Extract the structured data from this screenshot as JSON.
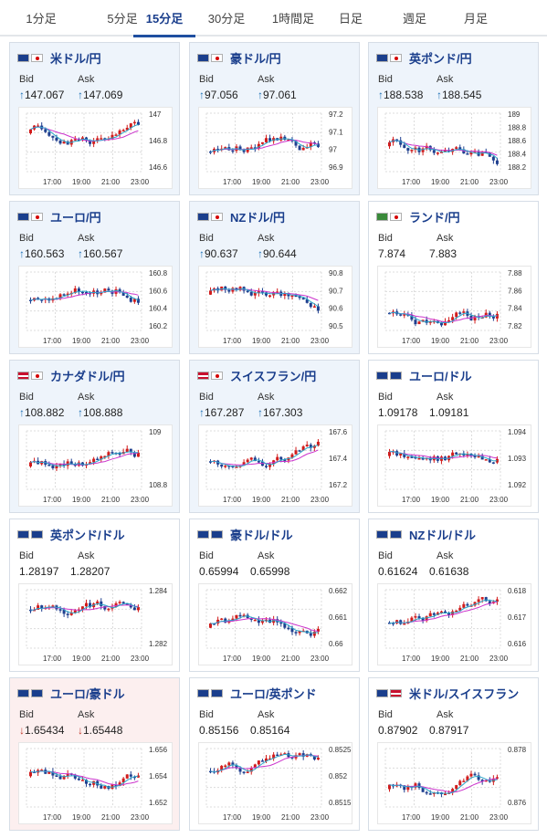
{
  "tabs": [
    {
      "label": "1分足",
      "active": false
    },
    {
      "label": "5分足",
      "active": false
    },
    {
      "label": "15分足",
      "active": true
    },
    {
      "label": "30分足",
      "active": false
    },
    {
      "label": "1時間足",
      "active": false
    },
    {
      "label": "日足",
      "active": false
    },
    {
      "label": "週足",
      "active": false
    },
    {
      "label": "月足",
      "active": false
    }
  ],
  "labels": {
    "bid": "Bid",
    "ask": "Ask"
  },
  "colors": {
    "up": "#d11c1c",
    "down": "#1f3f8f",
    "ma1": "#cc33cc",
    "ma2": "#2aa6c9",
    "accent": "#1a3e8c"
  },
  "cards": [
    {
      "name": "米ドル/円",
      "flags": [
        "us",
        "jp"
      ],
      "trend": "up",
      "bid": "147.067",
      "ask": "147.069",
      "bid_arrow": "↑",
      "ask_arrow": "↑",
      "yticks": [
        "147",
        "146.8",
        "146.6"
      ],
      "xticks": [
        "17:00",
        "19:00",
        "21:00",
        "23:00"
      ]
    },
    {
      "name": "豪ドル/円",
      "flags": [
        "au",
        "jp"
      ],
      "trend": "up",
      "bid": "97.056",
      "ask": "97.061",
      "bid_arrow": "↑",
      "ask_arrow": "↑",
      "yticks": [
        "97.2",
        "97.1",
        "97",
        "96.9"
      ],
      "xticks": [
        "17:00",
        "19:00",
        "21:00",
        "23:00"
      ]
    },
    {
      "name": "英ポンド/円",
      "flags": [
        "gb",
        "jp"
      ],
      "trend": "up",
      "bid": "188.538",
      "ask": "188.545",
      "bid_arrow": "↑",
      "ask_arrow": "↑",
      "yticks": [
        "189",
        "188.8",
        "188.6",
        "188.4",
        "188.2"
      ],
      "xticks": [
        "17:00",
        "19:00",
        "21:00",
        "23:00"
      ]
    },
    {
      "name": "ユーロ/円",
      "flags": [
        "eu",
        "jp"
      ],
      "trend": "up",
      "bid": "160.563",
      "ask": "160.567",
      "bid_arrow": "↑",
      "ask_arrow": "↑",
      "yticks": [
        "160.8",
        "160.6",
        "160.4",
        "160.2"
      ],
      "xticks": [
        "17:00",
        "19:00",
        "21:00",
        "23:00"
      ]
    },
    {
      "name": "NZドル/円",
      "flags": [
        "nz",
        "jp"
      ],
      "trend": "up",
      "bid": "90.637",
      "ask": "90.644",
      "bid_arrow": "↑",
      "ask_arrow": "↑",
      "yticks": [
        "90.8",
        "90.7",
        "90.6",
        "90.5"
      ],
      "xticks": [
        "17:00",
        "19:00",
        "21:00",
        "23:00"
      ]
    },
    {
      "name": "ランド/円",
      "flags": [
        "za",
        "jp"
      ],
      "trend": "none",
      "bid": "7.874",
      "ask": "7.883",
      "bid_arrow": "",
      "ask_arrow": "",
      "yticks": [
        "7.88",
        "7.86",
        "7.84",
        "7.82"
      ],
      "xticks": [
        "17:00",
        "19:00",
        "21:00",
        "23:00"
      ]
    },
    {
      "name": "カナダドル/円",
      "flags": [
        "ca",
        "jp"
      ],
      "trend": "up",
      "bid": "108.882",
      "ask": "108.888",
      "bid_arrow": "↑",
      "ask_arrow": "↑",
      "yticks": [
        "109",
        "108.8"
      ],
      "xticks": [
        "17:00",
        "19:00",
        "21:00",
        "23:00"
      ]
    },
    {
      "name": "スイスフラン/円",
      "flags": [
        "ch",
        "jp"
      ],
      "trend": "up",
      "bid": "167.287",
      "ask": "167.303",
      "bid_arrow": "↑",
      "ask_arrow": "↑",
      "yticks": [
        "167.6",
        "167.4",
        "167.2"
      ],
      "xticks": [
        "17:00",
        "19:00",
        "21:00",
        "23:00"
      ]
    },
    {
      "name": "ユーロ/ドル",
      "flags": [
        "eu",
        "us"
      ],
      "trend": "none",
      "bid": "1.09178",
      "ask": "1.09181",
      "bid_arrow": "",
      "ask_arrow": "",
      "yticks": [
        "1.094",
        "1.093",
        "1.092"
      ],
      "xticks": [
        "17:00",
        "19:00",
        "21:00",
        "23:00"
      ]
    },
    {
      "name": "英ポンド/ドル",
      "flags": [
        "gb",
        "us"
      ],
      "trend": "none",
      "bid": "1.28197",
      "ask": "1.28207",
      "bid_arrow": "",
      "ask_arrow": "",
      "yticks": [
        "1.284",
        "1.282"
      ],
      "xticks": [
        "17:00",
        "19:00",
        "21:00",
        "23:00"
      ]
    },
    {
      "name": "豪ドル/ドル",
      "flags": [
        "au",
        "us"
      ],
      "trend": "none",
      "bid": "0.65994",
      "ask": "0.65998",
      "bid_arrow": "",
      "ask_arrow": "",
      "yticks": [
        "0.662",
        "0.661",
        "0.66"
      ],
      "xticks": [
        "17:00",
        "19:00",
        "21:00",
        "23:00"
      ]
    },
    {
      "name": "NZドル/ドル",
      "flags": [
        "nz",
        "us"
      ],
      "trend": "none",
      "bid": "0.61624",
      "ask": "0.61638",
      "bid_arrow": "",
      "ask_arrow": "",
      "yticks": [
        "0.618",
        "0.617",
        "0.616"
      ],
      "xticks": [
        "17:00",
        "19:00",
        "21:00",
        "23:00"
      ]
    },
    {
      "name": "ユーロ/豪ドル",
      "flags": [
        "eu",
        "au"
      ],
      "trend": "down",
      "bid": "1.65434",
      "ask": "1.65448",
      "bid_arrow": "↓",
      "ask_arrow": "↓",
      "yticks": [
        "1.656",
        "1.654",
        "1.652"
      ],
      "xticks": [
        "17:00",
        "19:00",
        "21:00",
        "23:00"
      ]
    },
    {
      "name": "ユーロ/英ポンド",
      "flags": [
        "eu",
        "gb"
      ],
      "trend": "none",
      "bid": "0.85156",
      "ask": "0.85164",
      "bid_arrow": "",
      "ask_arrow": "",
      "yticks": [
        "0.8525",
        "0.852",
        "0.8515"
      ],
      "xticks": [
        "17:00",
        "19:00",
        "21:00",
        "23:00"
      ]
    },
    {
      "name": "米ドル/スイスフラン",
      "flags": [
        "us",
        "ch"
      ],
      "trend": "none",
      "bid": "0.87902",
      "ask": "0.87917",
      "bid_arrow": "",
      "ask_arrow": "",
      "yticks": [
        "0.878",
        "0.876"
      ],
      "xticks": [
        "17:00",
        "19:00",
        "21:00",
        "23:00"
      ]
    }
  ]
}
